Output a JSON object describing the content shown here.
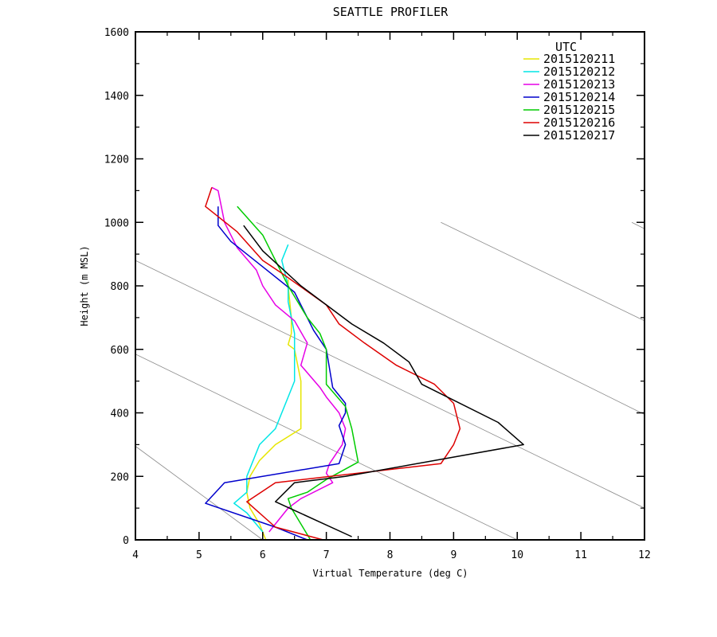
{
  "chart_data": {
    "type": "line",
    "title": "SEATTLE PROFILER",
    "xlabel": "Virtual Temperature (deg C)",
    "ylabel": "Height (m MSL)",
    "xlim": [
      4,
      12
    ],
    "ylim": [
      0,
      1600
    ],
    "x_ticks": [
      4,
      5,
      6,
      7,
      8,
      9,
      10,
      11,
      12
    ],
    "y_ticks": [
      0,
      200,
      400,
      600,
      800,
      1000,
      1200,
      1400,
      1600
    ],
    "legend_title": "UTC",
    "legend_position": "top-right",
    "series": [
      {
        "name": "2015120211",
        "color": "#e6e600",
        "points": [
          [
            6.05,
            0
          ],
          [
            5.95,
            50
          ],
          [
            5.8,
            100
          ],
          [
            5.75,
            150
          ],
          [
            5.8,
            200
          ],
          [
            5.95,
            250
          ],
          [
            6.2,
            300
          ],
          [
            6.6,
            350
          ],
          [
            6.6,
            400
          ],
          [
            6.6,
            450
          ],
          [
            6.6,
            500
          ],
          [
            6.5,
            600
          ],
          [
            6.4,
            615
          ],
          [
            6.45,
            650
          ],
          [
            6.45,
            700
          ],
          [
            6.4,
            800
          ],
          [
            6.4,
            820
          ]
        ]
      },
      {
        "name": "2015120212",
        "color": "#00e6e6",
        "points": [
          [
            6.0,
            25
          ],
          [
            5.75,
            85
          ],
          [
            5.55,
            115
          ],
          [
            5.75,
            150
          ],
          [
            5.75,
            200
          ],
          [
            5.85,
            250
          ],
          [
            5.95,
            300
          ],
          [
            6.2,
            350
          ],
          [
            6.4,
            450
          ],
          [
            6.5,
            500
          ],
          [
            6.5,
            600
          ],
          [
            6.5,
            650
          ],
          [
            6.4,
            750
          ],
          [
            6.4,
            800
          ],
          [
            6.3,
            880
          ],
          [
            6.4,
            930
          ]
        ]
      },
      {
        "name": "2015120213",
        "color": "#e600e6",
        "points": [
          [
            6.1,
            25
          ],
          [
            6.4,
            100
          ],
          [
            6.6,
            130
          ],
          [
            7.1,
            180
          ],
          [
            7.0,
            210
          ],
          [
            7.05,
            240
          ],
          [
            7.25,
            300
          ],
          [
            7.3,
            350
          ],
          [
            7.2,
            400
          ],
          [
            7.0,
            450
          ],
          [
            6.9,
            480
          ],
          [
            6.6,
            550
          ],
          [
            6.7,
            620
          ],
          [
            6.5,
            690
          ],
          [
            6.2,
            740
          ],
          [
            6.0,
            800
          ],
          [
            5.9,
            850
          ],
          [
            5.6,
            920
          ],
          [
            5.4,
            1000
          ],
          [
            5.3,
            1100
          ],
          [
            5.2,
            1110
          ]
        ]
      },
      {
        "name": "2015120214",
        "color": "#0000cc",
        "points": [
          [
            6.7,
            0
          ],
          [
            6.2,
            40
          ],
          [
            5.1,
            115
          ],
          [
            5.4,
            180
          ],
          [
            7.2,
            240
          ],
          [
            7.3,
            300
          ],
          [
            7.2,
            360
          ],
          [
            7.3,
            400
          ],
          [
            7.3,
            430
          ],
          [
            7.1,
            480
          ],
          [
            7.0,
            600
          ],
          [
            6.8,
            660
          ],
          [
            6.5,
            780
          ],
          [
            6.0,
            860
          ],
          [
            5.5,
            940
          ],
          [
            5.3,
            990
          ],
          [
            5.3,
            1050
          ]
        ]
      },
      {
        "name": "2015120215",
        "color": "#00cc00",
        "points": [
          [
            6.75,
            0
          ],
          [
            6.45,
            100
          ],
          [
            6.4,
            130
          ],
          [
            6.7,
            150
          ],
          [
            7.0,
            190
          ],
          [
            7.5,
            245
          ],
          [
            7.4,
            350
          ],
          [
            7.3,
            420
          ],
          [
            7.0,
            490
          ],
          [
            7.0,
            600
          ],
          [
            6.9,
            650
          ],
          [
            6.7,
            700
          ],
          [
            6.4,
            800
          ],
          [
            6.0,
            960
          ],
          [
            5.6,
            1050
          ]
        ]
      },
      {
        "name": "2015120216",
        "color": "#dd0000",
        "points": [
          [
            6.95,
            0
          ],
          [
            6.2,
            40
          ],
          [
            5.75,
            120
          ],
          [
            6.2,
            180
          ],
          [
            8.8,
            240
          ],
          [
            9.0,
            300
          ],
          [
            9.1,
            350
          ],
          [
            9.0,
            430
          ],
          [
            8.7,
            490
          ],
          [
            8.1,
            550
          ],
          [
            7.6,
            620
          ],
          [
            7.2,
            680
          ],
          [
            7.0,
            740
          ],
          [
            6.3,
            840
          ],
          [
            6.0,
            880
          ],
          [
            5.6,
            970
          ],
          [
            5.1,
            1050
          ],
          [
            5.2,
            1110
          ]
        ]
      },
      {
        "name": "2015120217",
        "color": "#000000",
        "points": [
          [
            7.4,
            10
          ],
          [
            6.2,
            120
          ],
          [
            6.5,
            180
          ],
          [
            7.3,
            200
          ],
          [
            10.1,
            300
          ],
          [
            9.7,
            370
          ],
          [
            8.5,
            490
          ],
          [
            8.3,
            560
          ],
          [
            7.9,
            620
          ],
          [
            7.4,
            680
          ],
          [
            7.0,
            740
          ],
          [
            6.6,
            800
          ],
          [
            6.0,
            910
          ],
          [
            5.7,
            990
          ]
        ]
      }
    ],
    "reference_lines": [
      [
        [
          4,
          295
        ],
        [
          6,
          0
        ]
      ],
      [
        [
          4,
          585
        ],
        [
          10,
          0
        ]
      ],
      [
        [
          4,
          880
        ],
        [
          12,
          100
        ]
      ],
      [
        [
          5.9,
          1000
        ],
        [
          12,
          395
        ]
      ],
      [
        [
          8.8,
          1000
        ],
        [
          12,
          690
        ]
      ],
      [
        [
          11.8,
          1000
        ],
        [
          12,
          980
        ]
      ]
    ]
  }
}
